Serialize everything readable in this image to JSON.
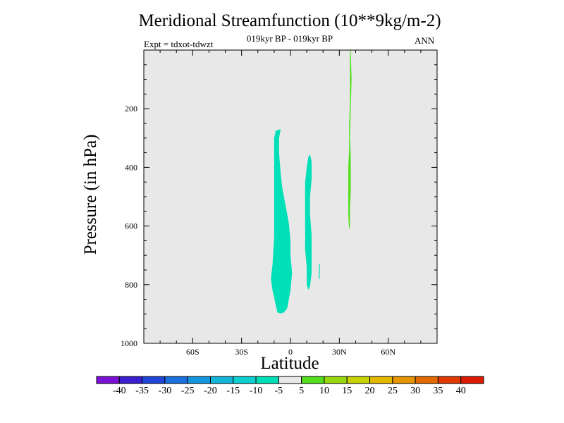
{
  "chart_data": {
    "type": "contour",
    "title": "Meridional Streamfunction (10**9kg/m-2)",
    "subtitle": "019kyr BP - 019kyr BP",
    "experiment": "Expt = tdxot-tdwzt",
    "season": "ANN",
    "xlabel": "Latitude",
    "ylabel": "Pressure (in hPa)",
    "xlim": [
      -90,
      90
    ],
    "ylim": [
      1000,
      0
    ],
    "x_ticks": [
      {
        "value": -60,
        "label": "60S"
      },
      {
        "value": -30,
        "label": "30S"
      },
      {
        "value": 0,
        "label": "0"
      },
      {
        "value": 30,
        "label": "30N"
      },
      {
        "value": 60,
        "label": "60N"
      }
    ],
    "y_ticks": [
      {
        "value": 200,
        "label": "200"
      },
      {
        "value": 400,
        "label": "400"
      },
      {
        "value": 600,
        "label": "600"
      },
      {
        "value": 800,
        "label": "800"
      },
      {
        "value": 1000,
        "label": "1000"
      }
    ],
    "colorbar": {
      "levels": [
        -40,
        -35,
        -30,
        -25,
        -20,
        -15,
        -10,
        -5,
        5,
        10,
        15,
        20,
        25,
        30,
        35,
        40
      ],
      "colors": [
        "#7b10d6",
        "#3a1fd0",
        "#2146d9",
        "#1c6fde",
        "#1597e0",
        "#11b6da",
        "#0fd0d0",
        "#00e0b8",
        "#e8e8e8",
        "#55de1e",
        "#98d810",
        "#c8d208",
        "#e2b800",
        "#e59500",
        "#e46a00",
        "#e03a00",
        "#dc1a00"
      ]
    },
    "background_color": "#e8e8e8",
    "filled_regions": [
      {
        "name": "negative cell near equator",
        "bin": "-10 to -5",
        "color": "#00e0b8",
        "outline": [
          [
            -6,
            270
          ],
          [
            -7,
            300
          ],
          [
            -7,
            350
          ],
          [
            -6,
            420
          ],
          [
            -5,
            470
          ],
          [
            -3,
            530
          ],
          [
            -1,
            590
          ],
          [
            0,
            650
          ],
          [
            0,
            700
          ],
          [
            1,
            760
          ],
          [
            0,
            820
          ],
          [
            -2,
            880
          ],
          [
            -4,
            895
          ],
          [
            -6,
            898
          ],
          [
            -8,
            895
          ],
          [
            -9,
            870
          ],
          [
            -11,
            820
          ],
          [
            -12,
            780
          ],
          [
            -11,
            730
          ],
          [
            -10,
            640
          ],
          [
            -10,
            560
          ],
          [
            -10,
            480
          ],
          [
            -10,
            400
          ],
          [
            -10,
            340
          ],
          [
            -10,
            300
          ],
          [
            -9,
            275
          ]
        ]
      },
      {
        "name": "negative cell near 12N",
        "bin": "-10 to -5",
        "color": "#00e0b8",
        "outline": [
          [
            12,
            355
          ],
          [
            13,
            380
          ],
          [
            13,
            440
          ],
          [
            12,
            500
          ],
          [
            12,
            560
          ],
          [
            13,
            630
          ],
          [
            13,
            700
          ],
          [
            13,
            760
          ],
          [
            12,
            805
          ],
          [
            11,
            818
          ],
          [
            10,
            800
          ],
          [
            10,
            740
          ],
          [
            9,
            680
          ],
          [
            9,
            620
          ],
          [
            9,
            560
          ],
          [
            9,
            500
          ],
          [
            9,
            450
          ],
          [
            10,
            400
          ],
          [
            11,
            365
          ]
        ]
      },
      {
        "name": "negative speck near 18N",
        "bin": "-10 to -5",
        "color": "#00e0b8",
        "outline": [
          [
            17.5,
            730
          ],
          [
            18,
            730
          ],
          [
            18,
            780
          ],
          [
            17.5,
            780
          ]
        ]
      },
      {
        "name": "positive plume near 37N",
        "bin": "5 to 10",
        "color": "#55de1e",
        "outline": [
          [
            37,
            0
          ],
          [
            37.5,
            100
          ],
          [
            37,
            200
          ],
          [
            36.5,
            300
          ],
          [
            37,
            360
          ],
          [
            37,
            420
          ],
          [
            37,
            480
          ],
          [
            36.5,
            540
          ],
          [
            36.5,
            600
          ],
          [
            36,
            612
          ],
          [
            35.5,
            560
          ],
          [
            35.5,
            480
          ],
          [
            35.5,
            400
          ],
          [
            36,
            340
          ],
          [
            36,
            260
          ],
          [
            36.5,
            180
          ],
          [
            36.5,
            100
          ],
          [
            36.5,
            0
          ]
        ]
      }
    ]
  }
}
